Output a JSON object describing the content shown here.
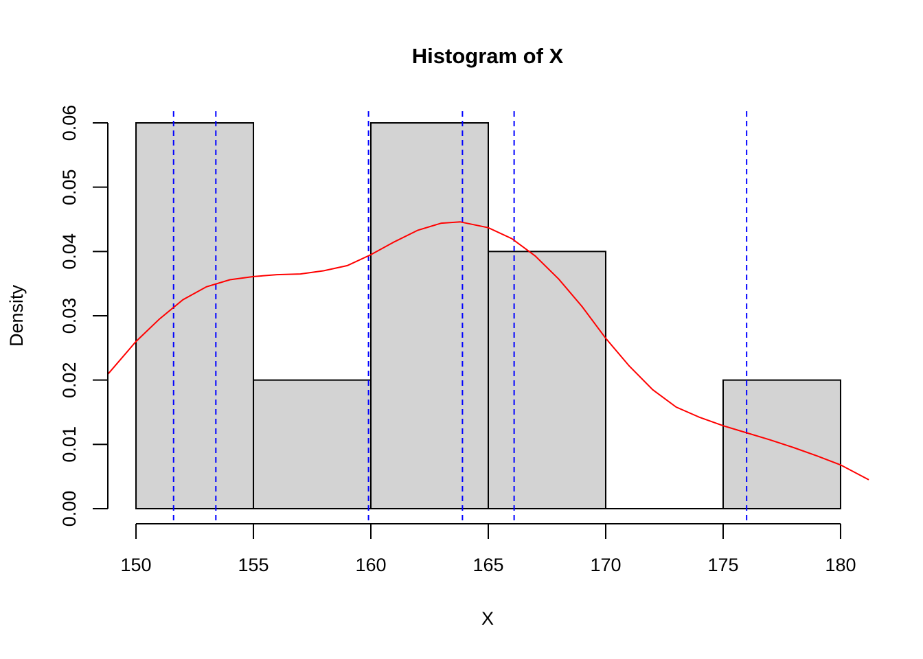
{
  "chart_data": {
    "type": "bar",
    "title": "Histogram of X",
    "xlabel": "X",
    "ylabel": "Density",
    "bins": [
      {
        "from": 150,
        "to": 155,
        "density": 0.06
      },
      {
        "from": 155,
        "to": 160,
        "density": 0.02
      },
      {
        "from": 160,
        "to": 165,
        "density": 0.06
      },
      {
        "from": 165,
        "to": 170,
        "density": 0.04
      },
      {
        "from": 170,
        "to": 175,
        "density": 0.0
      },
      {
        "from": 175,
        "to": 180,
        "density": 0.02
      }
    ],
    "x_ticks": [
      "150",
      "155",
      "160",
      "165",
      "170",
      "175",
      "180"
    ],
    "x_tick_values": [
      150,
      155,
      160,
      165,
      170,
      175,
      180
    ],
    "y_ticks": [
      "0.00",
      "0.01",
      "0.02",
      "0.03",
      "0.04",
      "0.05",
      "0.06"
    ],
    "y_tick_values": [
      0,
      0.01,
      0.02,
      0.03,
      0.04,
      0.05,
      0.06
    ],
    "xlim": [
      148.8,
      181.2
    ],
    "ylim": [
      0,
      0.06
    ],
    "density_curve": {
      "color": "#ff0000",
      "points": [
        [
          148.8,
          0.0209
        ],
        [
          150.0,
          0.026
        ],
        [
          151.0,
          0.0295
        ],
        [
          152.0,
          0.0325
        ],
        [
          153.0,
          0.0345
        ],
        [
          154.0,
          0.0356
        ],
        [
          155.0,
          0.0361
        ],
        [
          156.0,
          0.0364
        ],
        [
          157.0,
          0.0365
        ],
        [
          158.0,
          0.037
        ],
        [
          159.0,
          0.0378
        ],
        [
          160.0,
          0.0395
        ],
        [
          161.0,
          0.0415
        ],
        [
          162.0,
          0.0433
        ],
        [
          163.0,
          0.0444
        ],
        [
          163.8,
          0.0446
        ],
        [
          165.0,
          0.0437
        ],
        [
          166.0,
          0.042
        ],
        [
          167.0,
          0.0393
        ],
        [
          168.0,
          0.0357
        ],
        [
          169.0,
          0.0314
        ],
        [
          170.0,
          0.0265
        ],
        [
          171.0,
          0.0222
        ],
        [
          172.0,
          0.0185
        ],
        [
          173.0,
          0.0158
        ],
        [
          174.0,
          0.0142
        ],
        [
          175.0,
          0.0129
        ],
        [
          176.0,
          0.0118
        ],
        [
          177.0,
          0.0107
        ],
        [
          178.0,
          0.0095
        ],
        [
          179.0,
          0.0082
        ],
        [
          180.0,
          0.0068
        ],
        [
          181.2,
          0.0045
        ]
      ]
    },
    "reference_lines": {
      "color": "#0000ff",
      "style": "dashed",
      "x": [
        151.6,
        153.4,
        159.9,
        163.9,
        166.1,
        176.0
      ]
    },
    "colors": {
      "bar_fill": "#d3d3d3",
      "bar_stroke": "#000000"
    },
    "grid": false
  }
}
